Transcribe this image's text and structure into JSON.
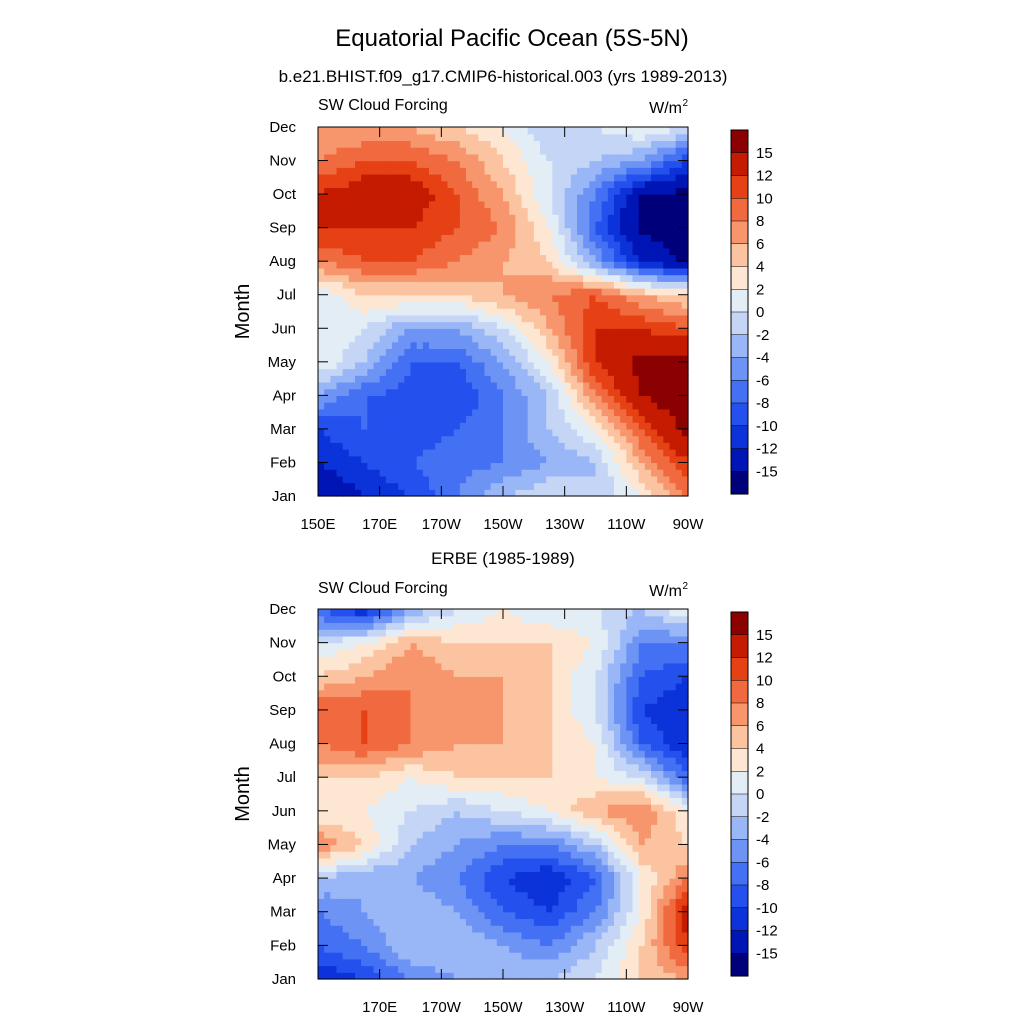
{
  "figure": {
    "title": "Equatorial Pacific Ocean (5S-5N)"
  },
  "chart_data": [
    {
      "type": "heatmap",
      "title": "b.e21.BHIST.f09_g17.CMIP6-historical.003 (yrs 1989-2013)",
      "left_label": "SW Cloud Forcing",
      "units_label": "W/m",
      "units_sup": "2",
      "ylabel": "Month",
      "xlabel": "",
      "x_tick_labels": [
        "150E",
        "170E",
        "170W",
        "150W",
        "130W",
        "110W",
        "90W"
      ],
      "x_ticks": [
        150,
        170,
        190,
        210,
        230,
        250,
        270
      ],
      "x_range": [
        150,
        270
      ],
      "y_tick_labels": [
        "Jan",
        "Feb",
        "Mar",
        "Apr",
        "May",
        "Jun",
        "Jul",
        "Aug",
        "Sep",
        "Oct",
        "Nov",
        "Dec"
      ],
      "y_range": [
        1,
        12
      ],
      "x": [
        150,
        165,
        180,
        195,
        210,
        225,
        240,
        255,
        270
      ],
      "y": [
        1,
        2,
        3,
        4,
        5,
        6,
        7,
        8,
        9,
        10,
        11,
        12
      ],
      "z": [
        [
          -15,
          -12,
          -10,
          -6,
          -2,
          0,
          -2,
          2,
          8
        ],
        [
          -12,
          -10,
          -8,
          -7,
          -6,
          -4,
          -2,
          6,
          12
        ],
        [
          -10,
          -8,
          -9,
          -8,
          -6,
          -2,
          2,
          10,
          16
        ],
        [
          -4,
          -8,
          -9,
          -10,
          -6,
          -2,
          8,
          15,
          18
        ],
        [
          2,
          -2,
          -8,
          -8,
          -4,
          2,
          12,
          16,
          17
        ],
        [
          2,
          0,
          -4,
          -4,
          0,
          6,
          12,
          12,
          10
        ],
        [
          0,
          4,
          4,
          4,
          6,
          8,
          10,
          6,
          4
        ],
        [
          8,
          10,
          10,
          8,
          6,
          4,
          -4,
          -12,
          -16
        ],
        [
          12,
          12,
          12,
          10,
          8,
          2,
          -8,
          -16,
          -16
        ],
        [
          12,
          14,
          14,
          10,
          6,
          0,
          -6,
          -15,
          -16
        ],
        [
          8,
          10,
          10,
          8,
          4,
          0,
          -2,
          -4,
          -10
        ],
        [
          6,
          6,
          6,
          4,
          2,
          -2,
          0,
          2,
          0
        ]
      ]
    },
    {
      "type": "heatmap",
      "title": "ERBE (1985-1989)",
      "left_label": "SW Cloud Forcing",
      "units_label": "W/m",
      "units_sup": "2",
      "ylabel": "Month",
      "xlabel": "",
      "x_tick_labels": [
        "170E",
        "170W",
        "150W",
        "130W",
        "110W",
        "90W"
      ],
      "x_ticks": [
        170,
        190,
        210,
        230,
        250,
        270
      ],
      "x_range": [
        150,
        270
      ],
      "y_tick_labels": [
        "Jan",
        "Feb",
        "Mar",
        "Apr",
        "May",
        "Jun",
        "Jul",
        "Aug",
        "Sep",
        "Oct",
        "Nov",
        "Dec"
      ],
      "y_range": [
        1,
        12
      ],
      "x": [
        150,
        165,
        180,
        195,
        210,
        225,
        240,
        255,
        270
      ],
      "y": [
        1,
        2,
        3,
        4,
        5,
        6,
        7,
        8,
        9,
        10,
        11,
        12
      ],
      "z": [
        [
          -12,
          -10,
          -6,
          -4,
          -2,
          -2,
          0,
          4,
          6
        ],
        [
          -8,
          -6,
          -2,
          -2,
          -4,
          -6,
          -2,
          4,
          12
        ],
        [
          -6,
          -4,
          -2,
          -4,
          -8,
          -10,
          -6,
          2,
          14
        ],
        [
          -2,
          -4,
          -4,
          -6,
          -10,
          -12,
          -8,
          2,
          8
        ],
        [
          8,
          4,
          -2,
          -4,
          -6,
          -6,
          -2,
          6,
          4
        ],
        [
          2,
          2,
          0,
          -2,
          0,
          2,
          6,
          8,
          2
        ],
        [
          4,
          4,
          2,
          4,
          4,
          4,
          2,
          0,
          -8
        ],
        [
          8,
          10,
          8,
          6,
          6,
          4,
          2,
          -8,
          -12
        ],
        [
          10,
          10,
          8,
          8,
          6,
          4,
          0,
          -10,
          -12
        ],
        [
          4,
          6,
          8,
          6,
          6,
          4,
          0,
          -8,
          -10
        ],
        [
          0,
          2,
          6,
          4,
          4,
          4,
          2,
          -6,
          -6
        ],
        [
          -8,
          -12,
          -4,
          0,
          2,
          0,
          0,
          -2,
          2
        ]
      ]
    }
  ],
  "colorbar": {
    "labels": [
      "15",
      "12",
      "10",
      "8",
      "6",
      "4",
      "2",
      "0",
      "-2",
      "-4",
      "-6",
      "-8",
      "-10",
      "-12",
      "-15"
    ],
    "levels": [
      -15,
      -12,
      -10,
      -8,
      -6,
      -4,
      -2,
      0,
      2,
      4,
      6,
      8,
      10,
      12,
      15
    ],
    "colors": [
      "#00007a",
      "#0015b5",
      "#0b33d9",
      "#2450ee",
      "#4471f4",
      "#6d94f5",
      "#99b6f7",
      "#c4d5f6",
      "#e3edf6",
      "#fde6d2",
      "#fbc3a0",
      "#f7966c",
      "#f16a3f",
      "#e54114",
      "#c51b00",
      "#8b0000"
    ]
  }
}
